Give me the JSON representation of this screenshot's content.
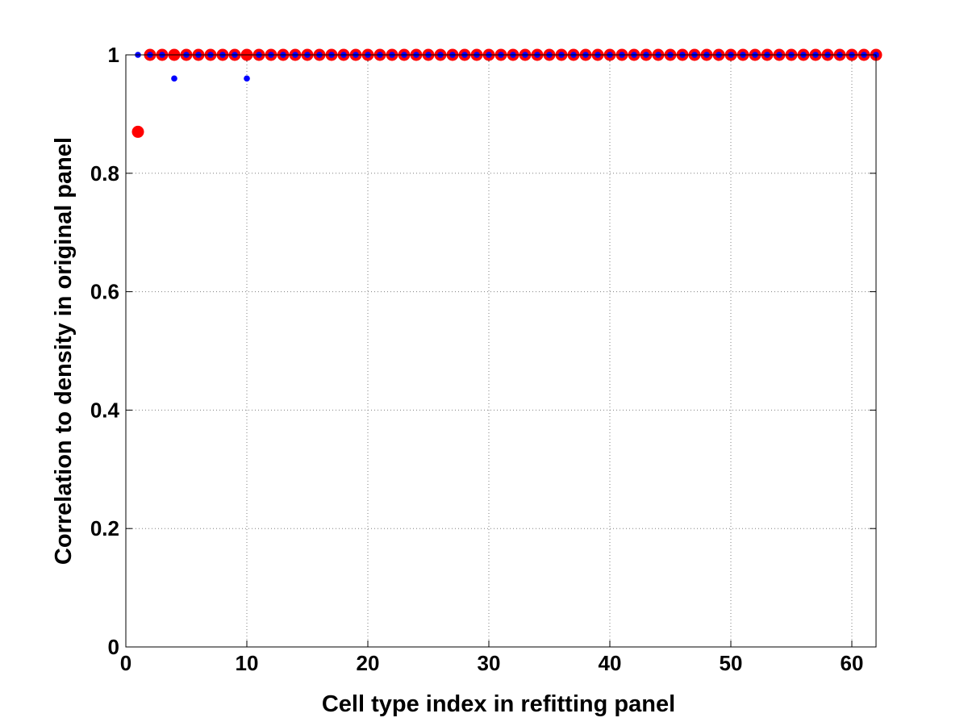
{
  "chart_data": {
    "type": "scatter",
    "title": "",
    "xlabel": "Cell type index in refitting panel",
    "ylabel": "Correlation to density in original panel",
    "xlim": [
      0,
      62
    ],
    "ylim": [
      0,
      1
    ],
    "grid": true,
    "x_ticks": [
      0,
      10,
      20,
      30,
      40,
      50,
      60
    ],
    "x_tick_labels": [
      "0",
      "10",
      "20",
      "30",
      "40",
      "50",
      "60"
    ],
    "y_ticks": [
      0,
      0.2,
      0.4,
      0.6,
      0.8,
      1
    ],
    "y_tick_labels": [
      "0",
      "0.2",
      "0.4",
      "0.6",
      "0.8",
      "1"
    ],
    "series": [
      {
        "color": "#ff0000",
        "marker": "large-dot",
        "x": [
          1,
          2,
          3,
          4,
          5,
          6,
          7,
          8,
          9,
          10,
          11,
          12,
          13,
          14,
          15,
          16,
          17,
          18,
          19,
          20,
          21,
          22,
          23,
          24,
          25,
          26,
          27,
          28,
          29,
          30,
          31,
          32,
          33,
          34,
          35,
          36,
          37,
          38,
          39,
          40,
          41,
          42,
          43,
          44,
          45,
          46,
          47,
          48,
          49,
          50,
          51,
          52,
          53,
          54,
          55,
          56,
          57,
          58,
          59,
          60,
          61,
          62
        ],
        "y": [
          0.87,
          1,
          1,
          1,
          1,
          1,
          1,
          1,
          1,
          1,
          1,
          1,
          1,
          1,
          1,
          1,
          1,
          1,
          1,
          1,
          1,
          1,
          1,
          1,
          1,
          1,
          1,
          1,
          1,
          1,
          1,
          1,
          1,
          1,
          1,
          1,
          1,
          1,
          1,
          1,
          1,
          1,
          1,
          1,
          1,
          1,
          1,
          1,
          1,
          1,
          1,
          1,
          1,
          1,
          1,
          1,
          1,
          1,
          1,
          1,
          1,
          1
        ]
      },
      {
        "color": "#0000ff",
        "marker": "small-dot",
        "x": [
          1,
          2,
          3,
          4,
          5,
          6,
          7,
          8,
          9,
          10,
          11,
          12,
          13,
          14,
          15,
          16,
          17,
          18,
          19,
          20,
          21,
          22,
          23,
          24,
          25,
          26,
          27,
          28,
          29,
          30,
          31,
          32,
          33,
          34,
          35,
          36,
          37,
          38,
          39,
          40,
          41,
          42,
          43,
          44,
          45,
          46,
          47,
          48,
          49,
          50,
          51,
          52,
          53,
          54,
          55,
          56,
          57,
          58,
          59,
          60,
          61,
          62
        ],
        "y": [
          1,
          1,
          1,
          0.96,
          1,
          1,
          1,
          1,
          1,
          0.96,
          1,
          1,
          1,
          1,
          1,
          1,
          1,
          1,
          1,
          1,
          1,
          1,
          1,
          1,
          1,
          1,
          1,
          1,
          1,
          1,
          1,
          1,
          1,
          1,
          1,
          1,
          1,
          1,
          1,
          1,
          1,
          1,
          1,
          1,
          1,
          1,
          1,
          1,
          1,
          1,
          1,
          1,
          1,
          1,
          1,
          1,
          1,
          1,
          1,
          1,
          1,
          1
        ]
      }
    ]
  }
}
